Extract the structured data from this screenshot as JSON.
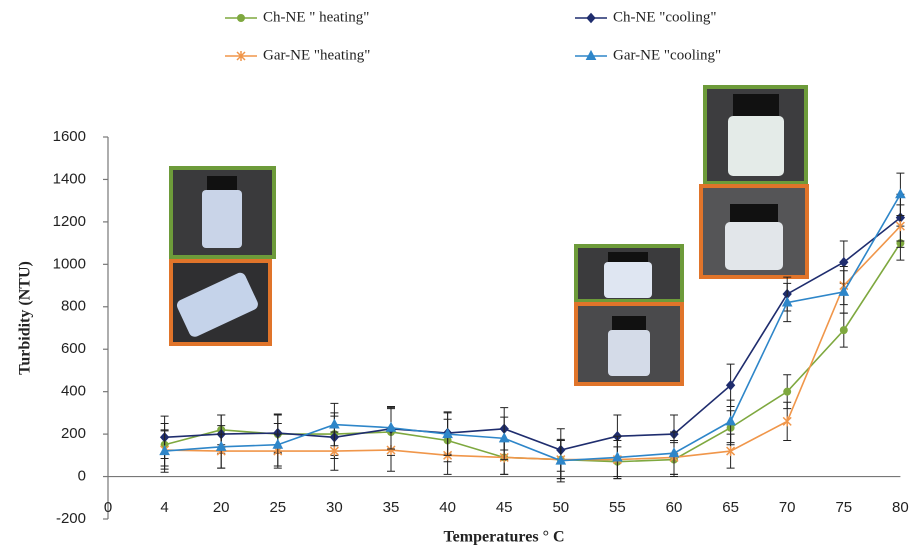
{
  "chart_data": {
    "type": "line",
    "x_label": "Temperatures ° C",
    "y_label": "Turbidity  (NTU)",
    "categories": [
      "0",
      "4",
      "20",
      "25",
      "30",
      "35",
      "40",
      "45",
      "50",
      "55",
      "60",
      "65",
      "70",
      "75",
      "80"
    ],
    "ylim": [
      -200,
      1600
    ],
    "yticks": [
      -200,
      0,
      200,
      400,
      600,
      800,
      1000,
      1200,
      1400,
      1600
    ],
    "grid": false,
    "series": [
      {
        "name": "Ch-NE \" heating\"",
        "color": "#7ea83f",
        "marker": "circle",
        "values": [
          null,
          150,
          220,
          200,
          200,
          210,
          170,
          90,
          80,
          70,
          80,
          230,
          400,
          690,
          1100
        ],
        "errors": [
          null,
          100,
          70,
          90,
          100,
          110,
          100,
          80,
          90,
          70,
          80,
          80,
          80,
          80,
          80
        ]
      },
      {
        "name": "Ch-NE \"cooling\"",
        "color": "#1f2d6e",
        "marker": "diamond",
        "values": [
          null,
          185,
          200,
          205,
          185,
          225,
          205,
          225,
          125,
          190,
          200,
          430,
          860,
          1010,
          1220
        ],
        "errors": [
          null,
          100,
          90,
          90,
          100,
          100,
          100,
          100,
          100,
          100,
          90,
          100,
          80,
          100,
          110
        ]
      },
      {
        "name": "Gar-NE \"heating\"",
        "color": "#f0964a",
        "marker": "star",
        "values": [
          null,
          125,
          120,
          120,
          120,
          125,
          100,
          90,
          80,
          80,
          90,
          120,
          260,
          900,
          1180
        ],
        "errors": [
          null,
          90,
          80,
          80,
          90,
          100,
          90,
          80,
          90,
          90,
          80,
          80,
          90,
          90,
          100
        ]
      },
      {
        "name": "Gar-NE \"cooling\"",
        "color": "#2e86c9",
        "marker": "triangle",
        "values": [
          null,
          120,
          140,
          150,
          245,
          230,
          200,
          180,
          75,
          90,
          110,
          260,
          820,
          870,
          1330
        ],
        "errors": [
          null,
          100,
          100,
          100,
          100,
          100,
          100,
          100,
          100,
          100,
          100,
          100,
          90,
          100,
          100
        ]
      }
    ]
  }
}
